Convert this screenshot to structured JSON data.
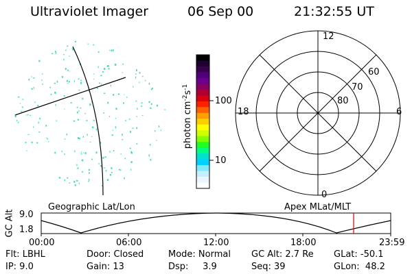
{
  "header": {
    "title": "Ultraviolet Imager",
    "date": "06 Sep 00",
    "time": "21:32:55 UT"
  },
  "colorbar": {
    "label_main": "photon cm",
    "label_sup1": "-2",
    "label_mid": "s",
    "label_sup2": "-1",
    "ticks": [
      "100",
      "10"
    ],
    "colors": [
      "#000000",
      "#200030",
      "#3a0050",
      "#50007a",
      "#6a0090",
      "#8a0060",
      "#b00030",
      "#d80010",
      "#ff2000",
      "#ff6000",
      "#ffa000",
      "#ffd000",
      "#ffff00",
      "#d0ff00",
      "#80ff00",
      "#20ff20",
      "#00ff80",
      "#00e0d0",
      "#00d0ff",
      "#80e8ff",
      "#c0f0ff",
      "#e8f6ff",
      "#ffffff"
    ]
  },
  "polar_plot": {
    "hour_labels": [
      "12",
      "18",
      "6",
      "0"
    ],
    "lat_labels": [
      "60",
      "70",
      "80"
    ]
  },
  "timeline": {
    "ylabel": "GC Alt",
    "yticks": [
      "9.0",
      "1.8"
    ],
    "left_title": "Geographic Lat/Lon",
    "right_title": "Apex MLat/MLT",
    "xticks": [
      "00:00",
      "06:00",
      "12:00",
      "18:00",
      "23:59"
    ],
    "marker_color": "#e00000"
  },
  "info": {
    "flt": "Flt: LBHL",
    "ip": "IP:  9.0",
    "door": "Door: Closed",
    "gain": "Gain: 13",
    "mode": "Mode: Normal",
    "dsp": "Dsp:     3.9",
    "gcalt": "GC Alt: 2.7 Re",
    "seq": "Seq: 39",
    "glat": "GLat: -50.1",
    "glon": "GLon:  48.2"
  },
  "dot_color": "#40e0b0"
}
